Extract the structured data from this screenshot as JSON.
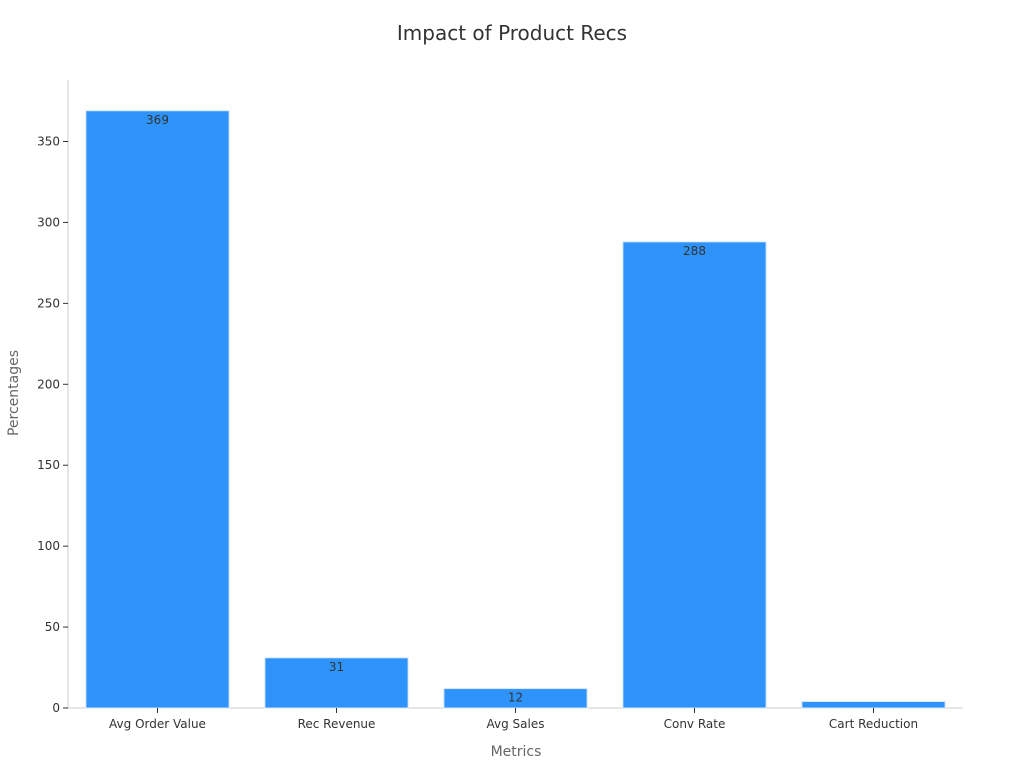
{
  "chart_data": {
    "type": "bar",
    "title": "Impact of Product Recs",
    "xlabel": "Metrics",
    "ylabel": "Percentages",
    "categories": [
      "Avg Order Value",
      "Rec Revenue",
      "Avg Sales",
      "Conv Rate",
      "Cart Reduction"
    ],
    "values": [
      369,
      31,
      12,
      288,
      4
    ],
    "data_labels": [
      "369",
      "31",
      "12",
      "288",
      ""
    ],
    "ylim": [
      0,
      388
    ],
    "yticks": [
      0,
      50,
      100,
      150,
      200,
      250,
      300,
      350
    ],
    "grid": false,
    "legend": "none",
    "colors": {
      "bar": "#2e93fa",
      "bar_edge": "#d6e6f7",
      "title": "#333333",
      "axis_label": "#666666",
      "tick_label": "#333333",
      "axis_line": "#cccccc",
      "data_label": "#333333"
    }
  }
}
